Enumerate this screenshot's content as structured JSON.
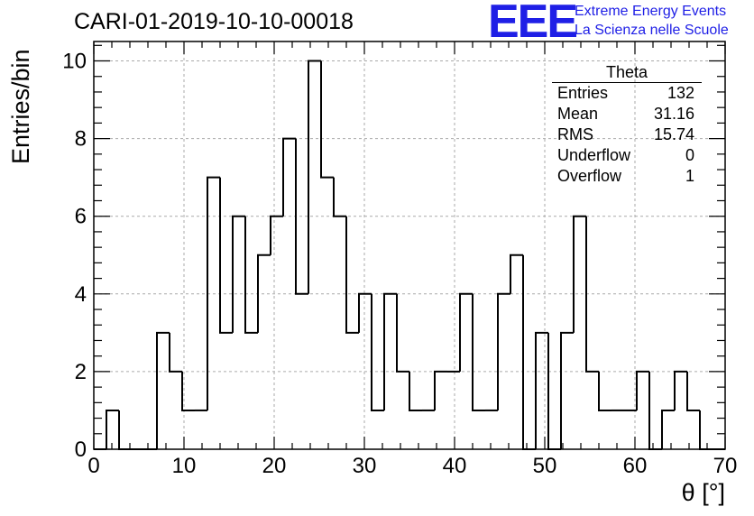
{
  "title": "CARI-01-2019-10-10-00018",
  "logo": {
    "mark": "EEE",
    "line1": "Extreme Energy Events",
    "line2": "La Scienza nelle Scuole"
  },
  "stats": {
    "title": "Theta",
    "rows": [
      {
        "label": "Entries",
        "value": "132"
      },
      {
        "label": "Mean",
        "value": "31.16"
      },
      {
        "label": "RMS",
        "value": "15.74"
      },
      {
        "label": "Underflow",
        "value": "0"
      },
      {
        "label": "Overflow",
        "value": "1"
      }
    ]
  },
  "chart_data": {
    "type": "histogram",
    "title": "CARI-01-2019-10-10-00018",
    "xlabel": "θ [°]",
    "ylabel": "Entries/bin",
    "xlim": [
      0,
      70
    ],
    "ylim": [
      0,
      10.5
    ],
    "grid": true,
    "bin_width": 1.4,
    "x_ticks": [
      0,
      10,
      20,
      30,
      40,
      50,
      60,
      70
    ],
    "y_ticks": [
      0,
      2,
      4,
      6,
      8,
      10
    ],
    "values": [
      0,
      1,
      0,
      0,
      0,
      3,
      2,
      1,
      1,
      7,
      3,
      6,
      3,
      5,
      6,
      8,
      4,
      10,
      7,
      6,
      3,
      4,
      1,
      4,
      2,
      1,
      1,
      2,
      2,
      4,
      1,
      1,
      4,
      5,
      0,
      3,
      0,
      3,
      6,
      2,
      1,
      1,
      1,
      2,
      0,
      1,
      2,
      1,
      0,
      0
    ]
  }
}
